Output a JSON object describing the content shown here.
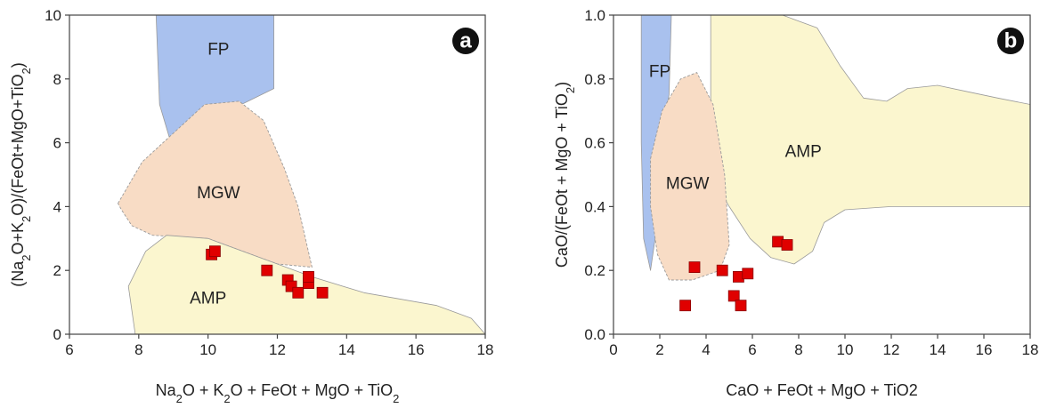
{
  "colors": {
    "FP": "#a9c1ee",
    "MGW": "#f8dcc5",
    "AMP": "#fbf6cf",
    "marker": "#e00000",
    "marker_edge": "#8a0000",
    "panel_badge": "#111111"
  },
  "chart_data": [
    {
      "type": "scatter",
      "panel": "a",
      "xlabel_parts": [
        [
          "Na",
          "n"
        ],
        [
          "2",
          "sub"
        ],
        [
          "O + K",
          "n"
        ],
        [
          "2",
          "sub"
        ],
        [
          "O + FeOt + MgO + TiO",
          "n"
        ],
        [
          "2",
          "sub"
        ]
      ],
      "ylabel_parts": [
        [
          "(Na",
          "n"
        ],
        [
          "2",
          "sub"
        ],
        [
          "O+K",
          "n"
        ],
        [
          "2",
          "sub"
        ],
        [
          "O)/(FeOt+MgO+TiO",
          "n"
        ],
        [
          "2",
          "sub"
        ],
        [
          ")",
          "n"
        ]
      ],
      "xlim": [
        6,
        18
      ],
      "ylim": [
        0,
        10
      ],
      "xticks": [
        6,
        8,
        10,
        12,
        14,
        16,
        18
      ],
      "yticks": [
        0,
        2,
        4,
        6,
        8,
        10
      ],
      "regions": [
        {
          "label": "FP",
          "color_key": "FP",
          "label_at": [
            10.3,
            8.9
          ],
          "polygon": [
            [
              8.5,
              10
            ],
            [
              11.9,
              10
            ],
            [
              11.9,
              7.7
            ],
            [
              8.9,
              6.1
            ],
            [
              8.6,
              7.2
            ]
          ]
        },
        {
          "label": "MGW",
          "color_key": "MGW",
          "label_at": [
            10.3,
            4.4
          ],
          "dashed": true,
          "polygon": [
            [
              7.4,
              4.1
            ],
            [
              8.1,
              5.4
            ],
            [
              9.9,
              7.2
            ],
            [
              10.9,
              7.3
            ],
            [
              11.6,
              6.7
            ],
            [
              12.2,
              5.2
            ],
            [
              12.6,
              4.0
            ],
            [
              13.0,
              2.1
            ],
            [
              12.0,
              2.2
            ],
            [
              10.0,
              3.0
            ],
            [
              8.4,
              3.1
            ],
            [
              7.8,
              3.4
            ],
            [
              7.5,
              3.9
            ]
          ]
        },
        {
          "label": "AMP",
          "color_key": "AMP",
          "label_at": [
            10.0,
            1.1
          ],
          "polygon": [
            [
              7.9,
              0
            ],
            [
              18,
              0
            ],
            [
              17.6,
              0.5
            ],
            [
              16.6,
              0.9
            ],
            [
              14.5,
              1.3
            ],
            [
              13.0,
              1.8
            ],
            [
              12.0,
              2.2
            ],
            [
              10.0,
              3.0
            ],
            [
              8.8,
              3.1
            ],
            [
              8.2,
              2.6
            ],
            [
              7.7,
              1.5
            ]
          ]
        }
      ],
      "points": [
        [
          10.1,
          2.5
        ],
        [
          10.2,
          2.6
        ],
        [
          11.7,
          2.0
        ],
        [
          12.3,
          1.7
        ],
        [
          12.4,
          1.5
        ],
        [
          12.6,
          1.3
        ],
        [
          12.9,
          1.6
        ],
        [
          12.9,
          1.8
        ],
        [
          13.3,
          1.3
        ]
      ]
    },
    {
      "type": "scatter",
      "panel": "b",
      "xlabel_parts": [
        [
          "CaO + FeOt + MgO + TiO2",
          "n"
        ]
      ],
      "ylabel_parts": [
        [
          "CaO/(FeOt + MgO + TiO",
          "n"
        ],
        [
          "2",
          "sub"
        ],
        [
          ")",
          "n"
        ]
      ],
      "xlim": [
        0,
        18
      ],
      "ylim": [
        0.0,
        1.0
      ],
      "xticks": [
        0,
        2,
        4,
        6,
        8,
        10,
        12,
        14,
        16,
        18
      ],
      "yticks": [
        0.0,
        0.2,
        0.4,
        0.6,
        0.8,
        1.0
      ],
      "ytick_labels": [
        "0.0",
        "0.2",
        "0.4",
        "0.6",
        "0.8",
        "1.0"
      ],
      "regions": [
        {
          "label": "AMP",
          "color_key": "AMP",
          "label_at": [
            8.2,
            0.57
          ],
          "polygon": [
            [
              4.2,
              1.0
            ],
            [
              7.3,
              1.0
            ],
            [
              8.8,
              0.96
            ],
            [
              9.8,
              0.84
            ],
            [
              10.8,
              0.74
            ],
            [
              11.8,
              0.73
            ],
            [
              12.7,
              0.77
            ],
            [
              14.0,
              0.78
            ],
            [
              15.3,
              0.76
            ],
            [
              16.6,
              0.74
            ],
            [
              18,
              0.72
            ],
            [
              18,
              0.4
            ],
            [
              15,
              0.4
            ],
            [
              12,
              0.4
            ],
            [
              10.0,
              0.39
            ],
            [
              9.1,
              0.35
            ],
            [
              8.6,
              0.26
            ],
            [
              7.8,
              0.22
            ],
            [
              6.8,
              0.24
            ],
            [
              5.9,
              0.3
            ],
            [
              5.0,
              0.4
            ],
            [
              4.2,
              0.5
            ]
          ]
        },
        {
          "label": "FP",
          "color_key": "FP",
          "label_at": [
            2.0,
            0.82
          ],
          "polygon": [
            [
              1.2,
              1.0
            ],
            [
              2.5,
              1.0
            ],
            [
              2.4,
              0.75
            ],
            [
              2.0,
              0.6
            ],
            [
              1.8,
              0.3
            ],
            [
              1.6,
              0.2
            ],
            [
              1.3,
              0.3
            ],
            [
              1.2,
              0.6
            ]
          ]
        },
        {
          "label": "MGW",
          "color_key": "MGW",
          "label_at": [
            3.2,
            0.47
          ],
          "dashed": true,
          "polygon": [
            [
              1.6,
              0.55
            ],
            [
              2.1,
              0.7
            ],
            [
              2.9,
              0.8
            ],
            [
              3.6,
              0.82
            ],
            [
              4.3,
              0.72
            ],
            [
              4.8,
              0.5
            ],
            [
              5.0,
              0.28
            ],
            [
              4.6,
              0.2
            ],
            [
              3.4,
              0.17
            ],
            [
              2.4,
              0.17
            ],
            [
              1.9,
              0.25
            ],
            [
              1.6,
              0.4
            ]
          ]
        }
      ],
      "points": [
        [
          3.1,
          0.09
        ],
        [
          3.5,
          0.21
        ],
        [
          4.7,
          0.2
        ],
        [
          5.2,
          0.12
        ],
        [
          5.4,
          0.18
        ],
        [
          5.5,
          0.09
        ],
        [
          5.8,
          0.19
        ],
        [
          7.1,
          0.29
        ],
        [
          7.5,
          0.28
        ]
      ]
    }
  ]
}
